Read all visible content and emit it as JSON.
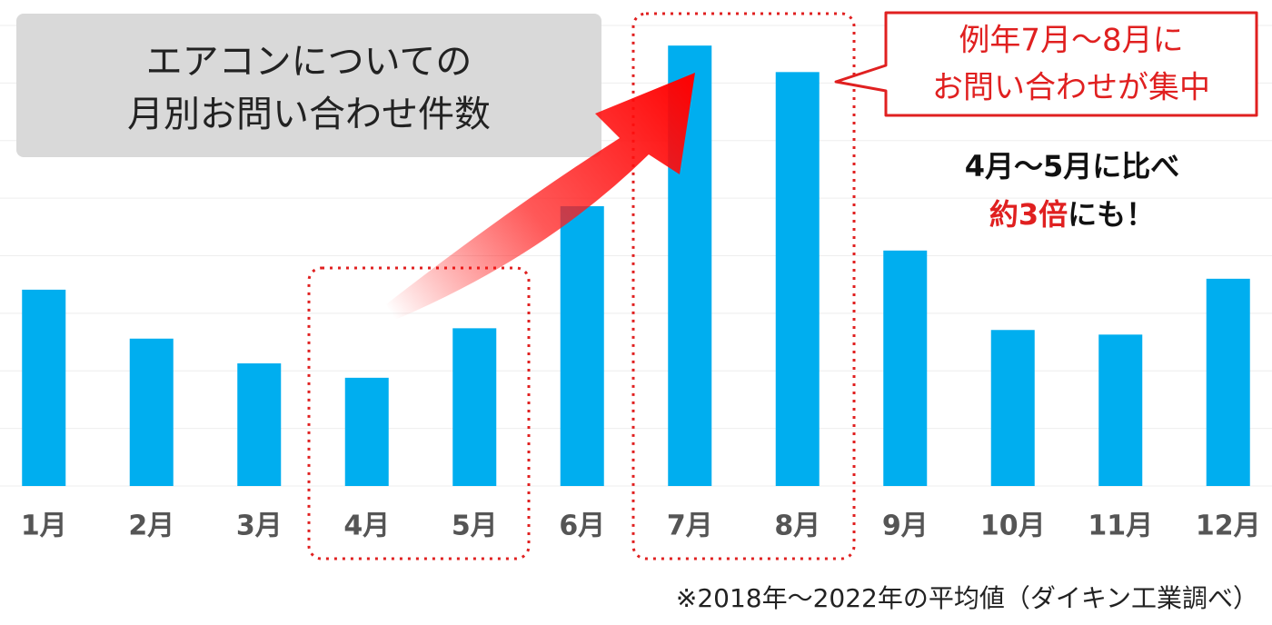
{
  "chart_data": {
    "type": "bar",
    "title": [
      "エアコンについての",
      "月別お問い合わせ件数"
    ],
    "categories": [
      "1月",
      "2月",
      "3月",
      "4月",
      "5月",
      "6月",
      "7月",
      "8月",
      "9月",
      "10月",
      "11月",
      "12月"
    ],
    "values": [
      3.41,
      2.56,
      2.13,
      1.88,
      2.74,
      4.86,
      7.65,
      7.19,
      4.09,
      2.71,
      2.63,
      3.6
    ],
    "color": "#00aeef",
    "ylim": [
      0,
      8
    ],
    "yticks": [
      0,
      1,
      2,
      3,
      4,
      5,
      6,
      7,
      8
    ],
    "grid": true,
    "annotations": {
      "callout": [
        "例年7月～8月に",
        "お問い合わせが集中"
      ],
      "comparison": "4月～5月に比べ",
      "emphasis": "約3倍",
      "emphasis_rest": "にも！"
    },
    "note": "※2018年～2022年の平均値（ダイキン工業調べ）"
  }
}
